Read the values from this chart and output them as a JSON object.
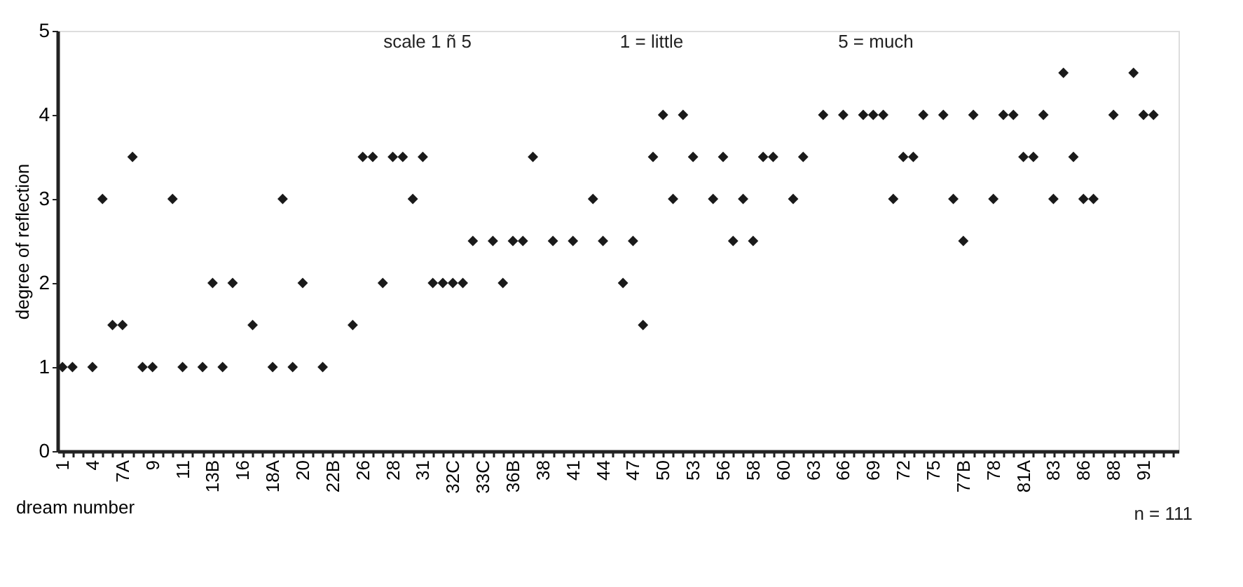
{
  "chart_data": {
    "type": "scatter",
    "xlabel": "dream number",
    "ylabel": "degree of reflection",
    "annotations": [
      "scale 1 ñ 5",
      "1 = little",
      "5 = much",
      "n = 111"
    ],
    "categories": [
      "1",
      null,
      null,
      "4",
      null,
      null,
      "7A",
      null,
      null,
      "9",
      null,
      null,
      "11",
      null,
      null,
      "13B",
      null,
      null,
      "16",
      null,
      null,
      "18A",
      null,
      null,
      "20",
      null,
      null,
      "22B",
      null,
      null,
      "26",
      null,
      null,
      "28",
      null,
      null,
      "31",
      null,
      null,
      "32C",
      null,
      null,
      "33C",
      null,
      null,
      "36B",
      null,
      null,
      "38",
      null,
      null,
      "41",
      null,
      null,
      "44",
      null,
      null,
      "47",
      null,
      null,
      "50",
      null,
      null,
      "53",
      null,
      null,
      "56",
      null,
      null,
      "58",
      null,
      null,
      "60",
      null,
      null,
      "63",
      null,
      null,
      "66",
      null,
      null,
      "69",
      null,
      null,
      "72",
      null,
      null,
      "75",
      null,
      null,
      "77B",
      null,
      null,
      "78",
      null,
      null,
      "81A",
      null,
      null,
      "83",
      null,
      null,
      "86",
      null,
      null,
      "88",
      null,
      null,
      "91",
      null,
      null,
      null
    ],
    "series": [
      {
        "color": "#1a1a1a",
        "values": [
          1,
          1,
          null,
          1,
          3,
          1.5,
          1.5,
          3.5,
          1,
          1,
          null,
          3,
          1,
          null,
          1,
          2,
          1,
          2,
          null,
          1.5,
          null,
          1,
          3,
          1,
          2,
          null,
          1,
          null,
          null,
          1.5,
          3.5,
          3.5,
          2,
          3.5,
          3.5,
          3,
          3.5,
          2,
          2,
          2,
          2,
          2.5,
          null,
          2.5,
          2,
          2.5,
          2.5,
          3.5,
          null,
          2.5,
          null,
          2.5,
          null,
          3,
          2.5,
          null,
          2,
          2.5,
          1.5,
          3.5,
          4,
          3,
          4,
          3.5,
          null,
          3,
          3.5,
          2.5,
          3,
          2.5,
          3.5,
          3.5,
          null,
          3,
          3.5,
          null,
          4,
          null,
          4,
          null,
          4,
          4,
          4,
          3,
          3.5,
          3.5,
          4,
          null,
          4,
          3,
          2.5,
          4,
          null,
          3,
          4,
          4,
          3.5,
          3.5,
          4,
          3,
          4.5,
          3.5,
          3,
          3,
          null,
          4,
          null,
          4.5,
          4,
          4,
          null,
          null
        ]
      }
    ],
    "ylim": [
      0,
      5
    ],
    "yticks": [
      0,
      1,
      2,
      3,
      4,
      5
    ],
    "grid": false,
    "marker": "diamond"
  }
}
